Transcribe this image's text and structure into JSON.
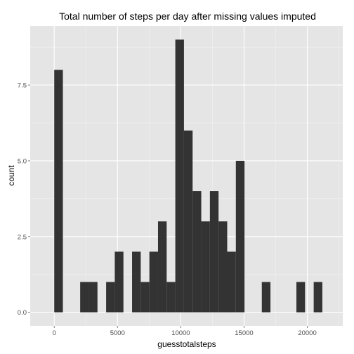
{
  "chart_data": {
    "type": "bar",
    "title": "Total number of steps per day after missing values imputed",
    "xlabel": "guesstotalsteps",
    "ylabel": "count",
    "x_ticks": [
      0,
      5000,
      10000,
      15000,
      20000
    ],
    "x_tick_labels": [
      "0",
      "5000",
      "10000",
      "15000",
      "20000"
    ],
    "y_ticks": [
      0,
      2.5,
      5,
      7.5
    ],
    "y_tick_labels": [
      "0.0",
      "2.5",
      "5.0",
      "7.5"
    ],
    "xlim": [
      -1900,
      22800
    ],
    "ylim": [
      -0.45,
      9.45
    ],
    "grid": true,
    "bins": [
      {
        "x_start": -1.2,
        "x_end": 682.3,
        "count": 8
      },
      {
        "x_start": 682.3,
        "x_end": 1365.8,
        "count": 0
      },
      {
        "x_start": 1365.8,
        "x_end": 2049.2,
        "count": 0
      },
      {
        "x_start": 2049.2,
        "x_end": 2732.7,
        "count": 1
      },
      {
        "x_start": 2732.7,
        "x_end": 3416.2,
        "count": 1
      },
      {
        "x_start": 3416.2,
        "x_end": 4099.7,
        "count": 0
      },
      {
        "x_start": 4099.7,
        "x_end": 4783.2,
        "count": 1
      },
      {
        "x_start": 4783.2,
        "x_end": 5466.6,
        "count": 2
      },
      {
        "x_start": 5466.6,
        "x_end": 6150.1,
        "count": 0
      },
      {
        "x_start": 6150.1,
        "x_end": 6833.6,
        "count": 2
      },
      {
        "x_start": 6833.6,
        "x_end": 7517.1,
        "count": 1
      },
      {
        "x_start": 7517.1,
        "x_end": 8200.6,
        "count": 2
      },
      {
        "x_start": 8200.6,
        "x_end": 8884.0,
        "count": 3
      },
      {
        "x_start": 8884.0,
        "x_end": 9567.5,
        "count": 1
      },
      {
        "x_start": 9567.5,
        "x_end": 10251.0,
        "count": 9
      },
      {
        "x_start": 10251.0,
        "x_end": 10934.5,
        "count": 6
      },
      {
        "x_start": 10934.5,
        "x_end": 11618.0,
        "count": 4
      },
      {
        "x_start": 11618.0,
        "x_end": 12301.4,
        "count": 3
      },
      {
        "x_start": 12301.4,
        "x_end": 12984.9,
        "count": 4
      },
      {
        "x_start": 12984.9,
        "x_end": 13668.4,
        "count": 3
      },
      {
        "x_start": 13668.4,
        "x_end": 14351.9,
        "count": 2
      },
      {
        "x_start": 14351.9,
        "x_end": 15035.4,
        "count": 5
      },
      {
        "x_start": 15035.4,
        "x_end": 15718.8,
        "count": 0
      },
      {
        "x_start": 15718.8,
        "x_end": 16402.3,
        "count": 0
      },
      {
        "x_start": 16402.3,
        "x_end": 17085.8,
        "count": 1
      },
      {
        "x_start": 17085.8,
        "x_end": 17769.3,
        "count": 0
      },
      {
        "x_start": 17769.3,
        "x_end": 18452.8,
        "count": 0
      },
      {
        "x_start": 18452.8,
        "x_end": 19136.2,
        "count": 0
      },
      {
        "x_start": 19136.2,
        "x_end": 19819.7,
        "count": 1
      },
      {
        "x_start": 19819.7,
        "x_end": 20503.2,
        "count": 0
      },
      {
        "x_start": 20503.2,
        "x_end": 21186.7,
        "count": 1
      }
    ]
  },
  "colors": {
    "panel_background": "#e5e5e5",
    "grid_major": "#ffffff",
    "grid_minor": "#f2f2f2",
    "bar_fill": "#333333",
    "tick_text": "#4d4d4d",
    "tick_mark": "#7f7f7f"
  }
}
